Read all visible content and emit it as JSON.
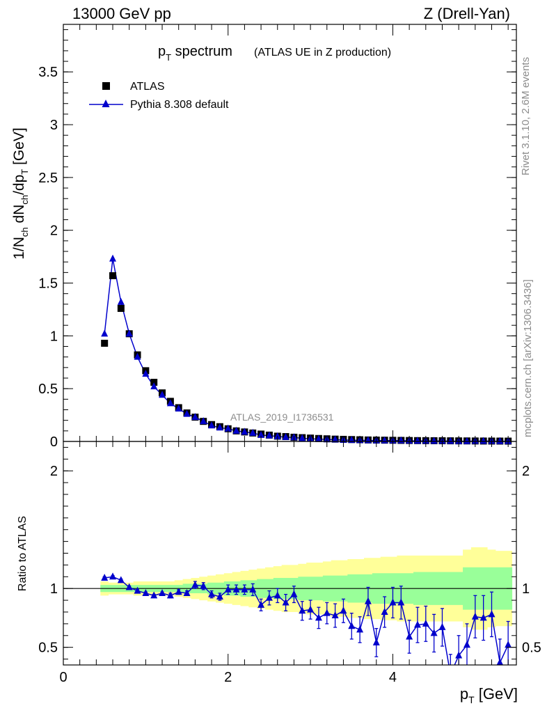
{
  "header": {
    "left": "13000 GeV pp",
    "right": "Z (Drell-Yan)"
  },
  "title": {
    "main": "p",
    "main_sub": "T",
    "main_rest": " spectrum",
    "paren": "(ATLAS UE in Z production)"
  },
  "side_labels": {
    "rivet": "Rivet 3.1.10,  2.6M events",
    "mcplots": "mcplots.cern.ch [arXiv:1306.3436]"
  },
  "analysis_ref": "ATLAS_2019_I1736531",
  "legend": {
    "data_label": "ATLAS",
    "mc_label": "Pythia 8.308 default"
  },
  "axes": {
    "y_label_parts": [
      "1/N",
      "ch",
      " dN",
      "ch",
      "/dp",
      "T",
      " [GeV]"
    ],
    "ratio_ylabel": "Ratio to ATLAS",
    "x_label_main": "p",
    "x_label_sub": "T",
    "x_label_unit": " [GeV]"
  },
  "colors": {
    "mc": "#0000cc",
    "data": "#000000",
    "band_inner": "#99ff99",
    "band_outer": "#ffff99"
  },
  "chart_data": [
    {
      "type": "scatter",
      "panel": "main",
      "xlim": [
        0,
        5.5
      ],
      "ylim": [
        0,
        3.95
      ],
      "x_ticks": [
        0,
        2,
        4
      ],
      "y_ticks": [
        0,
        0.5,
        1,
        1.5,
        2,
        2.5,
        3,
        3.5
      ],
      "y_tick_labels": [
        "0",
        "0.5",
        "1",
        "1.5",
        "2",
        "2.5",
        "3",
        "3.5"
      ],
      "series": [
        {
          "name": "ATLAS",
          "marker": "square",
          "x": [
            0.5,
            0.6,
            0.7,
            0.8,
            0.9,
            1.0,
            1.1,
            1.2,
            1.3,
            1.4,
            1.5,
            1.6,
            1.7,
            1.8,
            1.9,
            2.0,
            2.1,
            2.2,
            2.3,
            2.4,
            2.5,
            2.6,
            2.7,
            2.8,
            2.9,
            3.0,
            3.1,
            3.2,
            3.3,
            3.4,
            3.5,
            3.6,
            3.7,
            3.8,
            3.9,
            4.0,
            4.1,
            4.2,
            4.3,
            4.4,
            4.5,
            4.6,
            4.7,
            4.8,
            4.9,
            5.0,
            5.1,
            5.2,
            5.3,
            5.4
          ],
          "y": [
            0.93,
            1.57,
            1.26,
            1.02,
            0.82,
            0.67,
            0.56,
            0.46,
            0.38,
            0.32,
            0.27,
            0.23,
            0.19,
            0.16,
            0.14,
            0.12,
            0.1,
            0.09,
            0.08,
            0.07,
            0.06,
            0.05,
            0.046,
            0.04,
            0.036,
            0.032,
            0.028,
            0.025,
            0.022,
            0.02,
            0.018,
            0.016,
            0.014,
            0.013,
            0.012,
            0.011,
            0.01,
            0.009,
            0.008,
            0.0075,
            0.007,
            0.0065,
            0.006,
            0.0055,
            0.005,
            0.0045,
            0.004,
            0.0038,
            0.0035,
            0.0032
          ]
        },
        {
          "name": "Pythia 8.308 default",
          "marker": "triangle",
          "x": [
            0.5,
            0.6,
            0.7,
            0.8,
            0.9,
            1.0,
            1.1,
            1.2,
            1.3,
            1.4,
            1.5,
            1.6,
            1.7,
            1.8,
            1.9,
            2.0,
            2.1,
            2.2,
            2.3,
            2.4,
            2.5,
            2.6,
            2.7,
            2.8,
            2.9,
            3.0,
            3.1,
            3.2,
            3.3,
            3.4,
            3.5,
            3.6,
            3.7,
            3.8,
            3.9,
            4.0,
            4.1,
            4.2,
            4.3,
            4.4,
            4.5,
            4.6,
            4.7,
            4.8,
            4.9,
            5.0,
            5.1,
            5.2,
            5.3,
            5.4
          ],
          "y": [
            1.02,
            1.73,
            1.32,
            1.02,
            0.8,
            0.64,
            0.52,
            0.44,
            0.36,
            0.31,
            0.26,
            0.23,
            0.19,
            0.15,
            0.13,
            0.12,
            0.1,
            0.09,
            0.08,
            0.06,
            0.055,
            0.047,
            0.04,
            0.038,
            0.03,
            0.025,
            0.022,
            0.019,
            0.017,
            0.014,
            0.012,
            0.011,
            0.01,
            0.008,
            0.008,
            0.008,
            0.008,
            0.006,
            0.005,
            0.005,
            0.004,
            0.004,
            0.003,
            0.002,
            0.002,
            0.003,
            0.003,
            0.003,
            0.002,
            0.002
          ]
        }
      ]
    },
    {
      "type": "line",
      "panel": "ratio",
      "xlim": [
        0,
        5.5
      ],
      "ylim": [
        0.35,
        2.25
      ],
      "x_ticks": [
        0,
        2,
        4
      ],
      "x_tick_labels": [
        "0",
        "2",
        "4"
      ],
      "y_ticks": [
        0.5,
        1,
        2
      ],
      "y_tick_labels": [
        "0.5",
        "1",
        "2"
      ],
      "reference_line": 1,
      "band": {
        "x_edges": [
          0.45,
          0.55,
          0.65,
          0.75,
          0.85,
          0.95,
          1.05,
          1.15,
          1.25,
          1.35,
          1.45,
          1.55,
          1.65,
          1.75,
          1.85,
          1.95,
          2.05,
          2.15,
          2.25,
          2.35,
          2.45,
          2.55,
          2.65,
          2.75,
          2.85,
          2.95,
          3.05,
          3.15,
          3.25,
          3.35,
          3.45,
          3.55,
          3.65,
          3.75,
          3.85,
          3.95,
          4.05,
          4.15,
          4.25,
          4.35,
          4.45,
          4.55,
          4.65,
          4.75,
          4.85,
          4.95,
          5.05,
          5.15,
          5.25,
          5.35,
          5.45
        ],
        "inner_half": [
          0.03,
          0.03,
          0.03,
          0.03,
          0.03,
          0.03,
          0.03,
          0.03,
          0.03,
          0.03,
          0.04,
          0.04,
          0.04,
          0.05,
          0.05,
          0.06,
          0.06,
          0.07,
          0.07,
          0.08,
          0.08,
          0.09,
          0.09,
          0.09,
          0.1,
          0.1,
          0.1,
          0.11,
          0.11,
          0.11,
          0.12,
          0.12,
          0.12,
          0.13,
          0.13,
          0.13,
          0.13,
          0.13,
          0.14,
          0.14,
          0.14,
          0.14,
          0.14,
          0.14,
          0.18,
          0.18,
          0.18,
          0.18,
          0.18,
          0.18
        ],
        "outer_half": [
          0.06,
          0.05,
          0.05,
          0.05,
          0.06,
          0.06,
          0.06,
          0.06,
          0.06,
          0.07,
          0.08,
          0.09,
          0.1,
          0.11,
          0.12,
          0.13,
          0.14,
          0.15,
          0.16,
          0.17,
          0.18,
          0.19,
          0.2,
          0.2,
          0.21,
          0.22,
          0.22,
          0.23,
          0.24,
          0.24,
          0.25,
          0.25,
          0.26,
          0.26,
          0.27,
          0.27,
          0.28,
          0.28,
          0.28,
          0.28,
          0.28,
          0.28,
          0.28,
          0.28,
          0.33,
          0.35,
          0.35,
          0.33,
          0.32,
          0.32
        ]
      },
      "series": [
        {
          "name": "Pythia 8.308 default",
          "x": [
            0.5,
            0.6,
            0.7,
            0.8,
            0.9,
            1.0,
            1.1,
            1.2,
            1.3,
            1.4,
            1.5,
            1.6,
            1.7,
            1.8,
            1.9,
            2.0,
            2.1,
            2.2,
            2.3,
            2.4,
            2.5,
            2.6,
            2.7,
            2.8,
            2.9,
            3.0,
            3.1,
            3.2,
            3.3,
            3.4,
            3.5,
            3.6,
            3.7,
            3.8,
            3.9,
            4.0,
            4.1,
            4.2,
            4.3,
            4.4,
            4.5,
            4.6,
            4.7,
            4.8,
            4.9,
            5.0,
            5.1,
            5.2,
            5.3,
            5.4
          ],
          "y": [
            1.09,
            1.1,
            1.07,
            1.01,
            0.98,
            0.96,
            0.94,
            0.96,
            0.94,
            0.97,
            0.96,
            1.03,
            1.02,
            0.95,
            0.93,
            0.99,
            0.99,
            0.99,
            0.99,
            0.86,
            0.92,
            0.94,
            0.88,
            0.95,
            0.81,
            0.82,
            0.75,
            0.79,
            0.77,
            0.81,
            0.68,
            0.65,
            0.89,
            0.54,
            0.8,
            0.88,
            0.88,
            0.59,
            0.69,
            0.7,
            0.62,
            0.67,
            0.27,
            0.43,
            0.52,
            0.76,
            0.75,
            0.78,
            0.37,
            0.52
          ],
          "err": [
            0.01,
            0.01,
            0.01,
            0.01,
            0.01,
            0.01,
            0.01,
            0.01,
            0.02,
            0.02,
            0.02,
            0.03,
            0.03,
            0.03,
            0.03,
            0.04,
            0.04,
            0.04,
            0.05,
            0.05,
            0.06,
            0.06,
            0.07,
            0.07,
            0.08,
            0.08,
            0.09,
            0.09,
            0.1,
            0.1,
            0.11,
            0.11,
            0.12,
            0.12,
            0.13,
            0.13,
            0.14,
            0.14,
            0.15,
            0.15,
            0.16,
            0.16,
            0.17,
            0.17,
            0.18,
            0.18,
            0.19,
            0.19,
            0.2,
            0.2
          ]
        }
      ]
    }
  ]
}
